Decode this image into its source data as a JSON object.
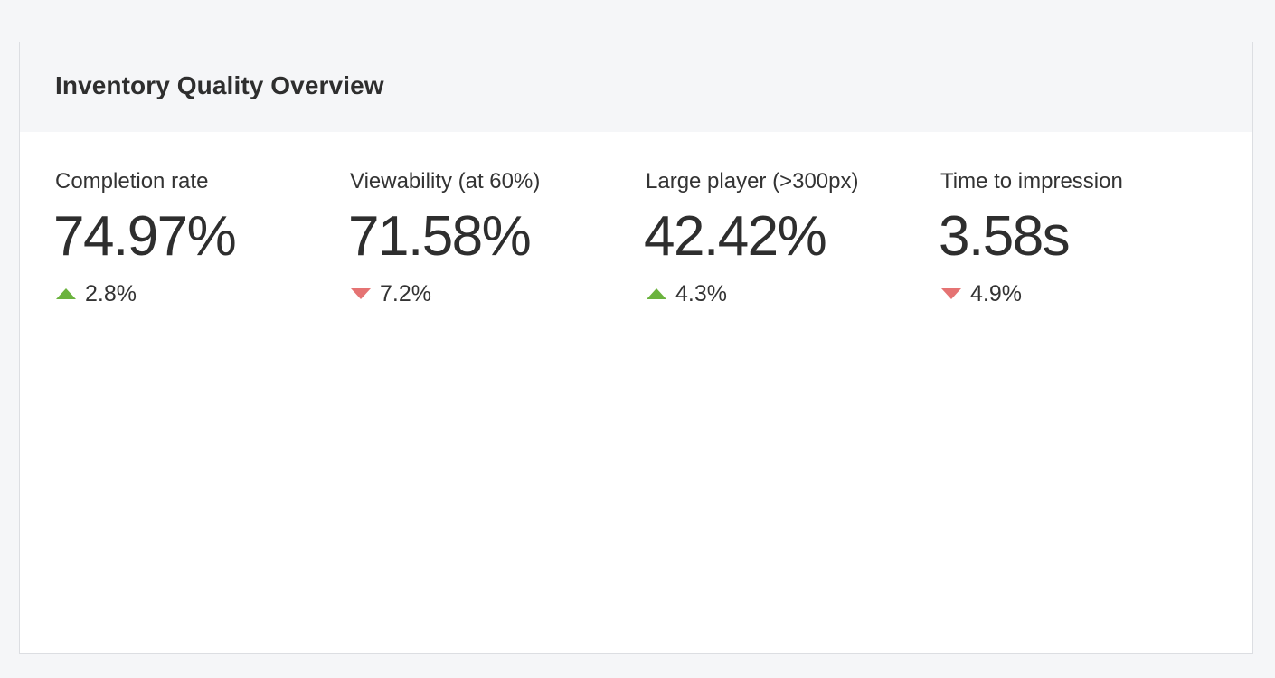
{
  "card": {
    "title": "Inventory Quality Overview"
  },
  "colors": {
    "up": "#6bb33e",
    "down": "#e57373"
  },
  "metrics": [
    {
      "label": "Completion rate",
      "value": "74.97%",
      "change": "2.8%",
      "direction": "up",
      "icon": "triangle-up-icon"
    },
    {
      "label": "Viewability (at 60%)",
      "value": "71.58%",
      "change": "7.2%",
      "direction": "down",
      "icon": "triangle-down-icon"
    },
    {
      "label": "Large player (>300px)",
      "value": "42.42%",
      "change": "4.3%",
      "direction": "up",
      "icon": "triangle-up-icon"
    },
    {
      "label": "Time to impression",
      "value": "3.58s",
      "change": "4.9%",
      "direction": "down",
      "icon": "triangle-down-icon"
    }
  ]
}
